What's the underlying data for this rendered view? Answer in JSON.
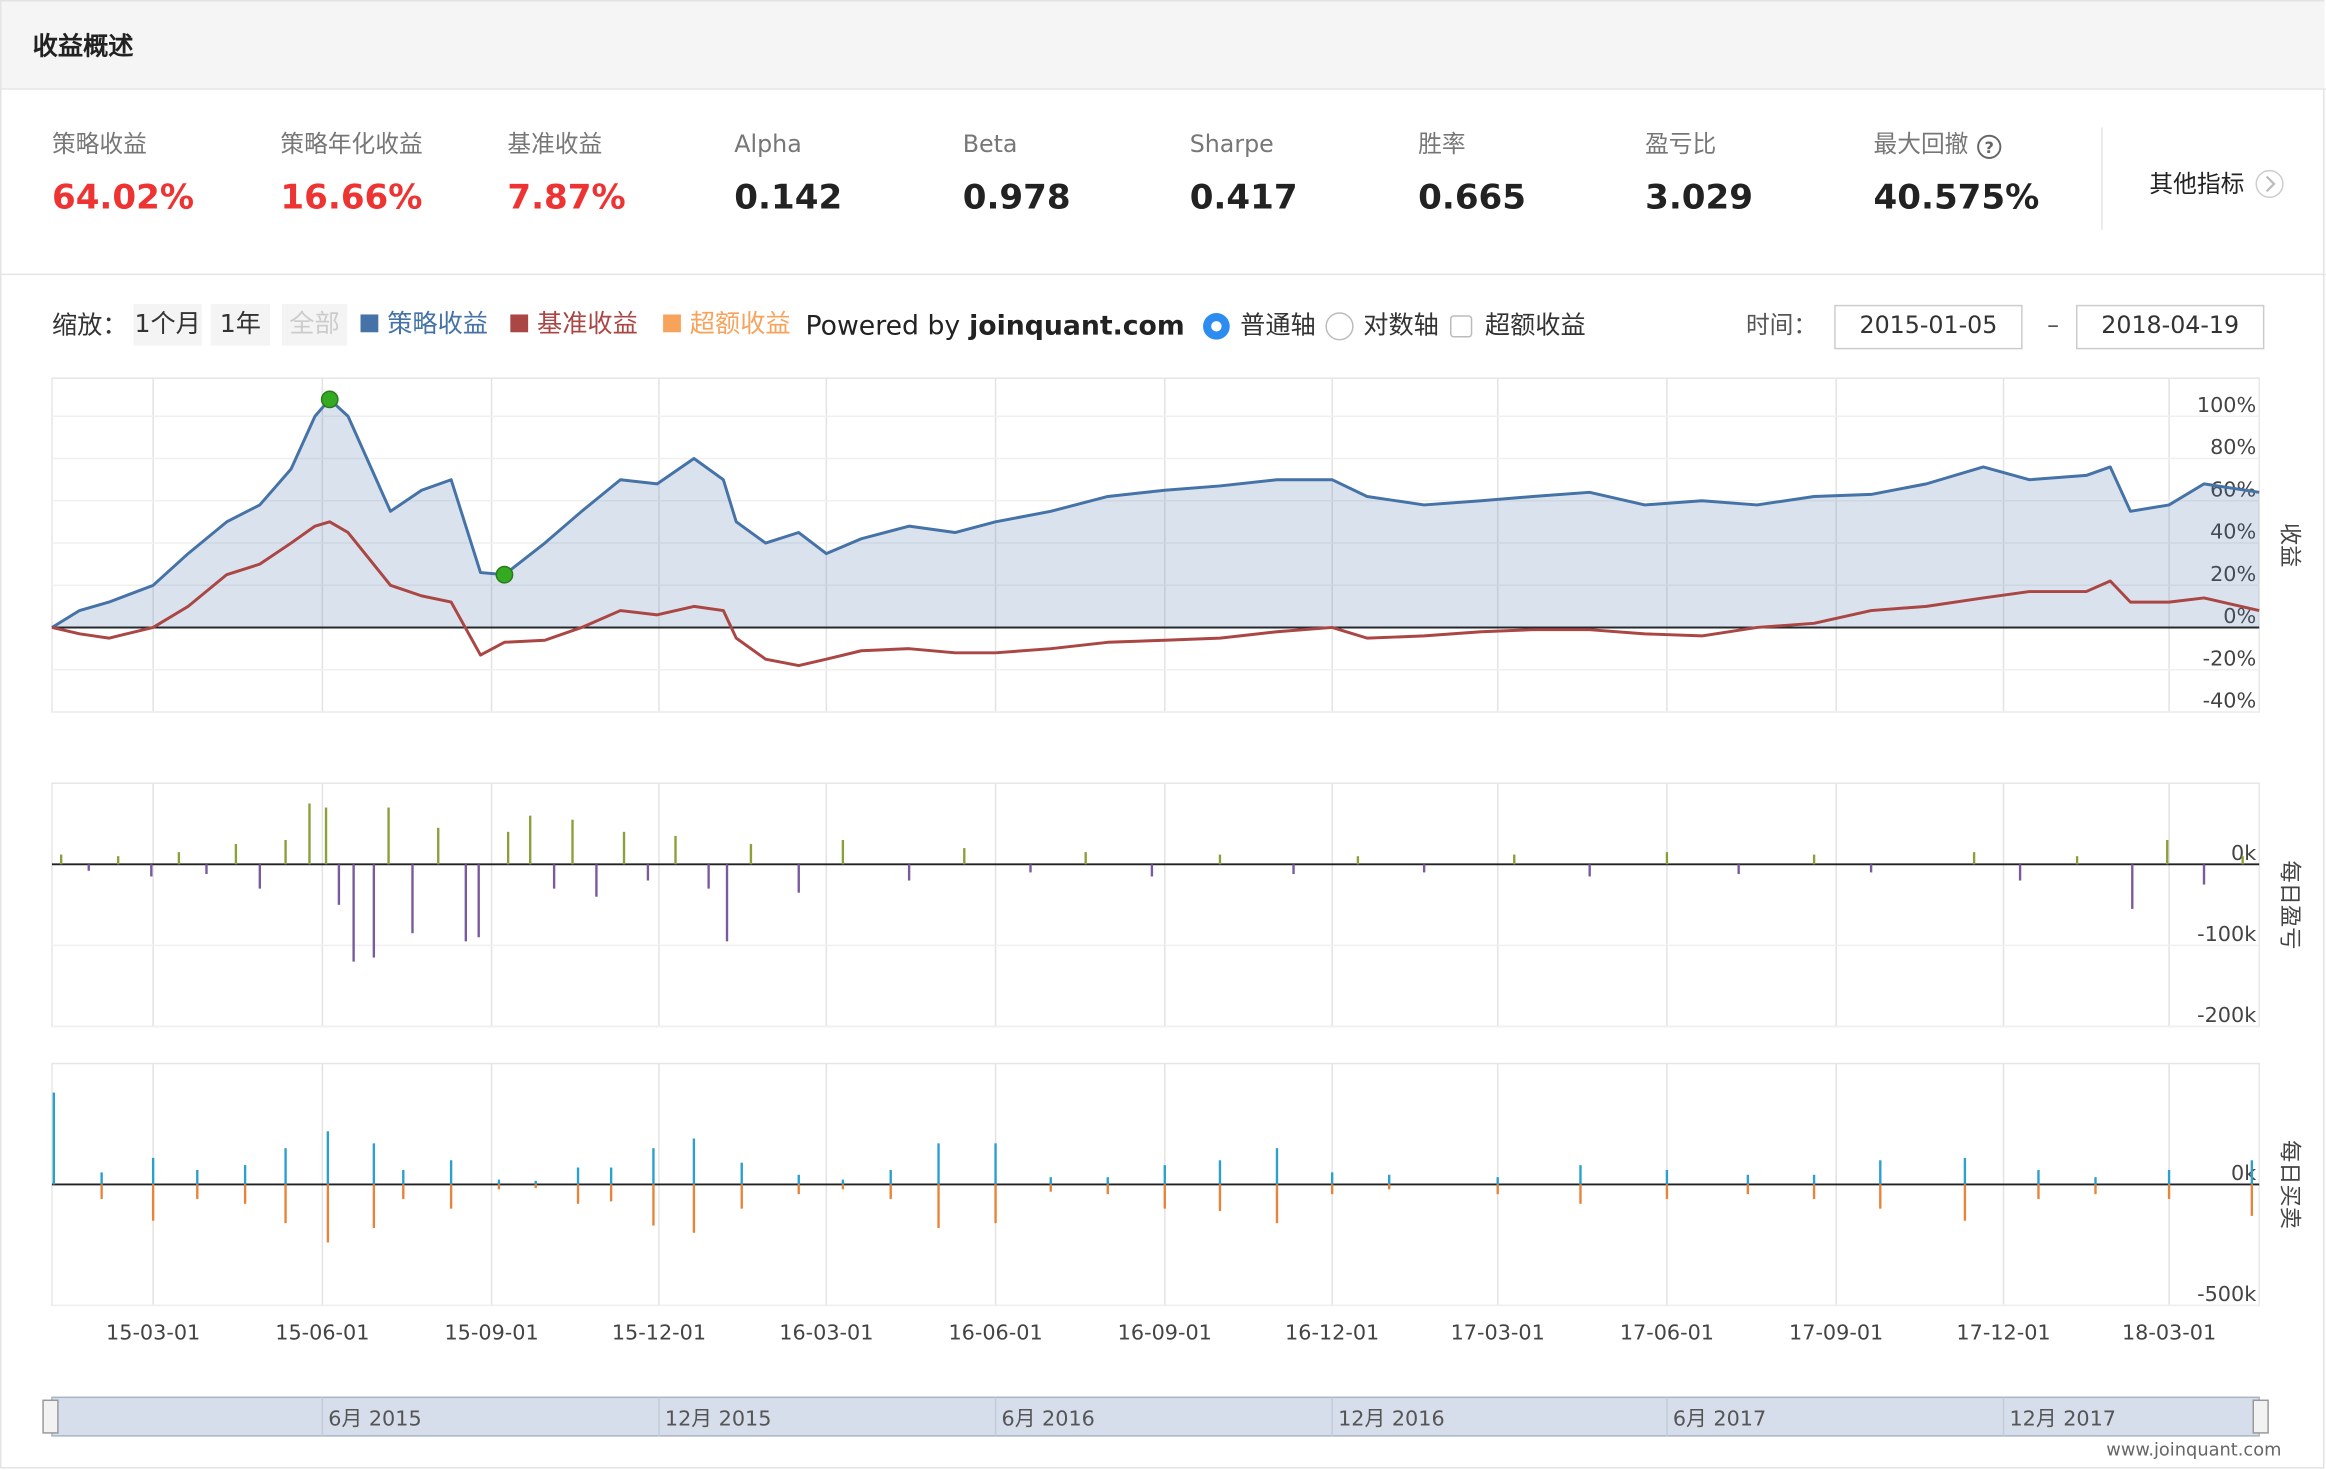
{
  "header": {
    "title": "收益概述"
  },
  "stats": [
    {
      "label": "策略收益",
      "value": "64.02%",
      "color": "#ee3333"
    },
    {
      "label": "策略年化收益",
      "value": "16.66%",
      "color": "#ee3333"
    },
    {
      "label": "基准收益",
      "value": "7.87%",
      "color": "#ee3333"
    },
    {
      "label": "Alpha",
      "value": "0.142",
      "color": "#222222"
    },
    {
      "label": "Beta",
      "value": "0.978",
      "color": "#222222"
    },
    {
      "label": "Sharpe",
      "value": "0.417",
      "color": "#222222"
    },
    {
      "label": "胜率",
      "value": "0.665",
      "color": "#222222"
    },
    {
      "label": "盈亏比",
      "value": "3.029",
      "color": "#222222"
    },
    {
      "label": "最大回撤",
      "value": "40.575%",
      "color": "#222222"
    }
  ],
  "other_metrics": "其他指标",
  "toolbar": {
    "zoom_label": "缩放：",
    "zoom_buttons": [
      "1个月",
      "1年",
      "全部"
    ],
    "powered_by": "Powered by",
    "powered_site": "joinquant.com",
    "axis_options": [
      "普通轴",
      "对数轴"
    ],
    "excess_checkbox": "超额收益",
    "time_label": "时间：",
    "range_dash": "–"
  },
  "chart_data": [
    {
      "type": "line",
      "y_title": "收益",
      "xlim": [
        "2015-01-05",
        "2018-04-19"
      ],
      "ylim": [
        -40,
        118
      ],
      "yticks": [
        {
          "value": 100,
          "label": "100%"
        },
        {
          "value": 80,
          "label": "80%"
        },
        {
          "value": 60,
          "label": "60%"
        },
        {
          "value": 40,
          "label": "40%"
        },
        {
          "value": 20,
          "label": "20%"
        },
        {
          "value": 0,
          "label": "0%"
        },
        {
          "value": -20,
          "label": "-20%"
        },
        {
          "value": -40,
          "label": "-40%"
        }
      ],
      "x": [
        "2015-01-05",
        "2015-01-20",
        "2015-02-05",
        "2015-03-01",
        "2015-03-20",
        "2015-04-10",
        "2015-04-28",
        "2015-05-15",
        "2015-05-28",
        "2015-06-05",
        "2015-06-15",
        "2015-07-08",
        "2015-07-25",
        "2015-08-10",
        "2015-08-26",
        "2015-09-08",
        "2015-09-30",
        "2015-10-20",
        "2015-11-10",
        "2015-11-30",
        "2015-12-20",
        "2016-01-05",
        "2016-01-12",
        "2016-01-28",
        "2016-02-15",
        "2016-03-01",
        "2016-03-20",
        "2016-04-15",
        "2016-05-10",
        "2016-06-01",
        "2016-07-01",
        "2016-08-01",
        "2016-09-01",
        "2016-10-01",
        "2016-11-01",
        "2016-12-01",
        "2016-12-20",
        "2017-01-20",
        "2017-02-20",
        "2017-03-20",
        "2017-04-20",
        "2017-05-20",
        "2017-06-20",
        "2017-07-20",
        "2017-08-20",
        "2017-09-20",
        "2017-10-20",
        "2017-11-20",
        "2017-12-15",
        "2018-01-15",
        "2018-01-28",
        "2018-02-08",
        "2018-03-01",
        "2018-03-20",
        "2018-04-19"
      ],
      "series": [
        {
          "name": "策略收益",
          "color": "#4572a7",
          "fill": "rgba(69,114,167,0.2)",
          "values": [
            0,
            8,
            12,
            20,
            35,
            50,
            58,
            75,
            100,
            108,
            100,
            55,
            65,
            70,
            26,
            25,
            40,
            55,
            70,
            68,
            80,
            70,
            50,
            40,
            45,
            35,
            42,
            48,
            45,
            50,
            55,
            62,
            65,
            67,
            70,
            70,
            62,
            58,
            60,
            62,
            64,
            58,
            60,
            58,
            62,
            63,
            68,
            76,
            70,
            72,
            76,
            55,
            58,
            68,
            64
          ]
        },
        {
          "name": "基准收益",
          "color": "#aa4643",
          "values": [
            0,
            -3,
            -5,
            0,
            10,
            25,
            30,
            40,
            48,
            50,
            45,
            20,
            15,
            12,
            -13,
            -7,
            -6,
            0,
            8,
            6,
            10,
            8,
            -5,
            -15,
            -18,
            -15,
            -11,
            -10,
            -12,
            -12,
            -10,
            -7,
            -6,
            -5,
            -2,
            0,
            -5,
            -4,
            -2,
            -1,
            -1,
            -3,
            -4,
            0,
            2,
            8,
            10,
            14,
            17,
            17,
            22,
            12,
            12,
            14,
            8
          ]
        }
      ],
      "extra_series": {
        "name": "超额收益",
        "color": "#f7a35c",
        "visible": false
      },
      "markers": {
        "color": "#33aa22",
        "x": [
          "2015-06-05",
          "2015-09-08"
        ],
        "values": [
          108,
          25
        ]
      }
    },
    {
      "type": "bar",
      "y_title": "每日盈亏",
      "xlim": [
        "2015-01-05",
        "2018-04-19"
      ],
      "ylim": [
        -200000,
        100000
      ],
      "yticks": [
        {
          "value": 0,
          "label": "0k"
        },
        {
          "value": -100000,
          "label": "-100k"
        },
        {
          "value": -200000,
          "label": "-200k"
        }
      ],
      "x": [
        "2015-01-10",
        "2015-01-25",
        "2015-02-10",
        "2015-02-28",
        "2015-03-15",
        "2015-03-30",
        "2015-04-15",
        "2015-04-28",
        "2015-05-12",
        "2015-05-25",
        "2015-06-03",
        "2015-06-10",
        "2015-06-18",
        "2015-06-29",
        "2015-07-07",
        "2015-07-20",
        "2015-08-03",
        "2015-08-18",
        "2015-08-25",
        "2015-09-10",
        "2015-09-22",
        "2015-10-05",
        "2015-10-15",
        "2015-10-28",
        "2015-11-12",
        "2015-11-25",
        "2015-12-10",
        "2015-12-28",
        "2016-01-07",
        "2016-01-20",
        "2016-02-15",
        "2016-03-10",
        "2016-04-15",
        "2016-05-15",
        "2016-06-20",
        "2016-07-20",
        "2016-08-25",
        "2016-10-01",
        "2016-11-10",
        "2016-12-15",
        "2017-01-20",
        "2017-03-10",
        "2017-04-20",
        "2017-06-01",
        "2017-07-10",
        "2017-08-20",
        "2017-09-20",
        "2017-11-15",
        "2017-12-10",
        "2018-01-10",
        "2018-02-09",
        "2018-02-28",
        "2018-03-20",
        "2018-04-10"
      ],
      "series": [
        {
          "color": "#8aa03a",
          "negative_color": "#7a5a9e",
          "values": [
            12000,
            -8000,
            10000,
            -15000,
            15000,
            -12000,
            25000,
            -30000,
            30000,
            75000,
            70000,
            -50000,
            -120000,
            -115000,
            70000,
            -85000,
            45000,
            -95000,
            -90000,
            40000,
            60000,
            -30000,
            55000,
            -40000,
            40000,
            -20000,
            35000,
            -30000,
            -95000,
            25000,
            -35000,
            30000,
            -20000,
            20000,
            -10000,
            15000,
            -15000,
            12000,
            -12000,
            10000,
            -10000,
            12000,
            -15000,
            15000,
            -12000,
            12000,
            -10000,
            15000,
            -20000,
            10000,
            -55000,
            30000,
            -25000,
            10000
          ]
        }
      ]
    },
    {
      "type": "bar",
      "y_title": "每日买卖",
      "xlim": [
        "2015-01-05",
        "2018-04-19"
      ],
      "ylim": [
        -500000,
        500000
      ],
      "yticks": [
        {
          "value": 0,
          "label": "0k"
        },
        {
          "value": -500000,
          "label": "-500k"
        }
      ],
      "xticks": [
        {
          "value": "2015-03-01",
          "label": "15-03-01"
        },
        {
          "value": "2015-06-01",
          "label": "15-06-01"
        },
        {
          "value": "2015-09-01",
          "label": "15-09-01"
        },
        {
          "value": "2015-12-01",
          "label": "15-12-01"
        },
        {
          "value": "2016-03-01",
          "label": "16-03-01"
        },
        {
          "value": "2016-06-01",
          "label": "16-06-01"
        },
        {
          "value": "2016-09-01",
          "label": "16-09-01"
        },
        {
          "value": "2016-12-01",
          "label": "16-12-01"
        },
        {
          "value": "2017-03-01",
          "label": "17-03-01"
        },
        {
          "value": "2017-06-01",
          "label": "17-06-01"
        },
        {
          "value": "2017-09-01",
          "label": "17-09-01"
        },
        {
          "value": "2017-12-01",
          "label": "17-12-01"
        },
        {
          "value": "2018-03-01",
          "label": "18-03-01"
        }
      ],
      "x": [
        "2015-01-06",
        "2015-02-01",
        "2015-03-01",
        "2015-03-25",
        "2015-04-20",
        "2015-05-12",
        "2015-06-04",
        "2015-06-29",
        "2015-07-15",
        "2015-08-10",
        "2015-09-05",
        "2015-09-25",
        "2015-10-18",
        "2015-11-05",
        "2015-11-28",
        "2015-12-20",
        "2016-01-15",
        "2016-02-15",
        "2016-03-10",
        "2016-04-05",
        "2016-05-01",
        "2016-06-01",
        "2016-07-01",
        "2016-08-01",
        "2016-09-01",
        "2016-10-01",
        "2016-11-01",
        "2016-12-01",
        "2017-01-01",
        "2017-03-01",
        "2017-04-15",
        "2017-06-01",
        "2017-07-15",
        "2017-08-20",
        "2017-09-25",
        "2017-11-10",
        "2017-12-20",
        "2018-01-20",
        "2018-03-01",
        "2018-04-15"
      ],
      "series": [
        {
          "color": "#2b9fcf",
          "values": [
            380000,
            50000,
            110000,
            60000,
            80000,
            150000,
            220000,
            170000,
            60000,
            100000,
            20000,
            15000,
            70000,
            70000,
            150000,
            190000,
            90000,
            40000,
            20000,
            60000,
            170000,
            170000,
            30000,
            30000,
            80000,
            100000,
            150000,
            50000,
            40000,
            30000,
            80000,
            60000,
            40000,
            40000,
            100000,
            110000,
            60000,
            30000,
            60000,
            100000
          ]
        },
        {
          "color": "#e8843a",
          "values": [
            0,
            -60000,
            -150000,
            -60000,
            -80000,
            -160000,
            -240000,
            -180000,
            -60000,
            -100000,
            -20000,
            -15000,
            -80000,
            -70000,
            -170000,
            -200000,
            -100000,
            -40000,
            -20000,
            -60000,
            -180000,
            -160000,
            -30000,
            -40000,
            -100000,
            -110000,
            -160000,
            -40000,
            -20000,
            -40000,
            -80000,
            -60000,
            -40000,
            -60000,
            -100000,
            -150000,
            -60000,
            -40000,
            -60000,
            -130000
          ]
        }
      ]
    }
  ],
  "navigator": {
    "ticks": [
      {
        "value": "2015-06-01",
        "label": "6月 2015"
      },
      {
        "value": "2015-12-01",
        "label": "12月 2015"
      },
      {
        "value": "2016-06-01",
        "label": "6月 2016"
      },
      {
        "value": "2016-12-01",
        "label": "12月 2016"
      },
      {
        "value": "2017-06-01",
        "label": "6月 2017"
      },
      {
        "value": "2017-12-01",
        "label": "12月 2017"
      }
    ]
  },
  "footer": "www.joinquant.com"
}
